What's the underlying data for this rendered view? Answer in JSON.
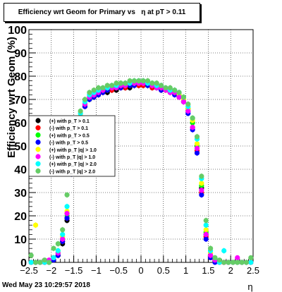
{
  "title": "Efficiency wrt Geom for Primary vs   η at pT > 0.11",
  "timestamp": "Wed May 23 10:29:57 2018",
  "colors": {
    "plus_0_1": "#000000",
    "minus_0_1": "#ff0000",
    "plus_0_5": "#00ff00",
    "minus_0_5": "#0000ff",
    "plus_1_0": "#ffff00",
    "minus_1_0": "#ff00ff",
    "plus_2_0": "#00ffff",
    "minus_2_0": "#66cc66"
  },
  "chart_data": {
    "type": "scatter",
    "title": "Efficiency wrt Geom for Primary vs   η at pT > 0.11",
    "xlabel": "η",
    "ylabel": "Efficiency wrt Geom (%)",
    "xlim": [
      -2.5,
      2.5
    ],
    "ylim": [
      0,
      100
    ],
    "grid": true,
    "legend_position": "left-middle",
    "x_ticks": [
      "−2.5",
      "−2",
      "−1.5",
      "−1",
      "−0.5",
      "0",
      "0.5",
      "1",
      "1.5",
      "2",
      "2.5"
    ],
    "y_ticks": [
      "0",
      "10",
      "20",
      "30",
      "40",
      "50",
      "60",
      "70",
      "80",
      "90",
      "100"
    ],
    "x": [
      -2.45,
      -2.35,
      -2.25,
      -2.15,
      -2.05,
      -1.95,
      -1.85,
      -1.75,
      -1.65,
      -1.55,
      -1.45,
      -1.35,
      -1.25,
      -1.15,
      -1.05,
      -0.95,
      -0.85,
      -0.75,
      -0.65,
      -0.55,
      -0.45,
      -0.35,
      -0.25,
      -0.15,
      -0.05,
      0.05,
      0.15,
      0.25,
      0.35,
      0.45,
      0.55,
      0.65,
      0.75,
      0.85,
      0.95,
      1.05,
      1.15,
      1.25,
      1.35,
      1.45,
      1.55,
      1.65,
      1.75,
      1.85,
      1.95,
      2.05,
      2.15,
      2.25,
      2.35,
      2.45
    ],
    "series": [
      {
        "name": "(+) with p_T > 0.1",
        "color": "#000000",
        "values": [
          0,
          0,
          0,
          0,
          0,
          1,
          3,
          8,
          18,
          38,
          52,
          60,
          67,
          70,
          71,
          72,
          73,
          73,
          74,
          74,
          75,
          75,
          75,
          76,
          76,
          76,
          76,
          75,
          75,
          75,
          74,
          74,
          73,
          72,
          70,
          66,
          60,
          50,
          32,
          12,
          3,
          1,
          0,
          0,
          0,
          0,
          0,
          0,
          0,
          0
        ]
      },
      {
        "name": "(-) with p_T > 0.1",
        "color": "#ff0000",
        "values": [
          0,
          0,
          0,
          0,
          0,
          1,
          3,
          9,
          19,
          39,
          52,
          61,
          67,
          70,
          71,
          72,
          73,
          74,
          74,
          75,
          75,
          75,
          76,
          76,
          76,
          76,
          76,
          75,
          75,
          74,
          74,
          73,
          73,
          71,
          69,
          65,
          58,
          48,
          30,
          11,
          2,
          1,
          0,
          0,
          0,
          0,
          0,
          0,
          0,
          0
        ]
      },
      {
        "name": "(+) with p_T > 0.5",
        "color": "#00ff00",
        "values": [
          0,
          0,
          0,
          0,
          0,
          2,
          4,
          10,
          20,
          40,
          54,
          62,
          68,
          70,
          72,
          73,
          74,
          74,
          75,
          75,
          76,
          76,
          76,
          77,
          77,
          77,
          76,
          76,
          75,
          75,
          74,
          74,
          73,
          72,
          70,
          66,
          60,
          50,
          33,
          13,
          3,
          1,
          0,
          0,
          0,
          0,
          0,
          0,
          0,
          0
        ]
      },
      {
        "name": "(-) with p_T > 0.5",
        "color": "#0000ff",
        "values": [
          0,
          0,
          0,
          0,
          0,
          1,
          3,
          9,
          19,
          38,
          53,
          61,
          67,
          70,
          71,
          72,
          73,
          74,
          75,
          75,
          75,
          76,
          76,
          76,
          77,
          77,
          76,
          76,
          75,
          74,
          74,
          73,
          72,
          71,
          69,
          64,
          57,
          47,
          29,
          10,
          2,
          0,
          0,
          0,
          0,
          0,
          0,
          0,
          0,
          0
        ]
      },
      {
        "name": "(+) with p_T > 1.0",
        "color": "#ffff00",
        "values": [
          0,
          16,
          0,
          0,
          0,
          2,
          5,
          11,
          22,
          41,
          54,
          63,
          68,
          71,
          72,
          74,
          74,
          75,
          75,
          76,
          76,
          76,
          77,
          77,
          77,
          77,
          77,
          76,
          76,
          75,
          74,
          74,
          73,
          72,
          70,
          66,
          61,
          51,
          34,
          14,
          4,
          1,
          0,
          0,
          0,
          0,
          0,
          0,
          0,
          0
        ]
      },
      {
        "name": "(-) with p_T > 1.0",
        "color": "#ff00ff",
        "values": [
          0,
          0,
          0,
          0,
          1,
          2,
          4,
          10,
          21,
          40,
          53,
          62,
          68,
          71,
          72,
          73,
          74,
          75,
          75,
          75,
          76,
          76,
          77,
          77,
          77,
          77,
          77,
          76,
          75,
          75,
          74,
          73,
          73,
          71,
          69,
          65,
          58,
          49,
          31,
          12,
          3,
          1,
          0,
          0,
          0,
          0,
          2,
          0,
          0,
          0
        ]
      },
      {
        "name": "(+) with p_T > 2.0",
        "color": "#00ffff",
        "values": [
          0,
          0,
          0,
          0,
          0,
          2,
          5,
          12,
          24,
          43,
          56,
          64,
          69,
          72,
          73,
          74,
          75,
          75,
          76,
          76,
          77,
          77,
          77,
          78,
          78,
          78,
          77,
          77,
          76,
          76,
          75,
          74,
          74,
          73,
          71,
          67,
          62,
          53,
          36,
          16,
          5,
          2,
          0,
          5,
          0,
          0,
          0,
          0,
          0,
          0
        ]
      },
      {
        "name": "(-) with p_T > 2.0",
        "color": "#66cc66",
        "values": [
          3,
          0,
          0,
          1,
          0,
          6,
          8,
          14,
          29,
          45,
          57,
          65,
          70,
          73,
          74,
          75,
          75,
          76,
          76,
          77,
          77,
          77,
          78,
          78,
          78,
          78,
          78,
          77,
          77,
          76,
          75,
          75,
          74,
          73,
          71,
          68,
          62,
          54,
          37,
          18,
          6,
          2,
          1,
          0,
          0,
          0,
          0,
          0,
          0,
          2
        ]
      }
    ]
  },
  "legend": [
    {
      "label": "(+) with p_T > 0.1",
      "color": "#000000"
    },
    {
      "label": "(-) with p_T > 0.1",
      "color": "#ff0000"
    },
    {
      "label": "(+) with p_T > 0.5",
      "color": "#00ff00"
    },
    {
      "label": "(-) with p_T > 0.5",
      "color": "#0000ff"
    },
    {
      "label": "(+) with p_T |q| > 1.0",
      "color": "#ffff00"
    },
    {
      "label": "(-) with p_T |q| > 1.0",
      "color": "#ff00ff"
    },
    {
      "label": "(+) with p_T |q| > 2.0",
      "color": "#00ffff"
    },
    {
      "label": "(-) with p_T |q| > 2.0",
      "color": "#66cc66"
    }
  ]
}
